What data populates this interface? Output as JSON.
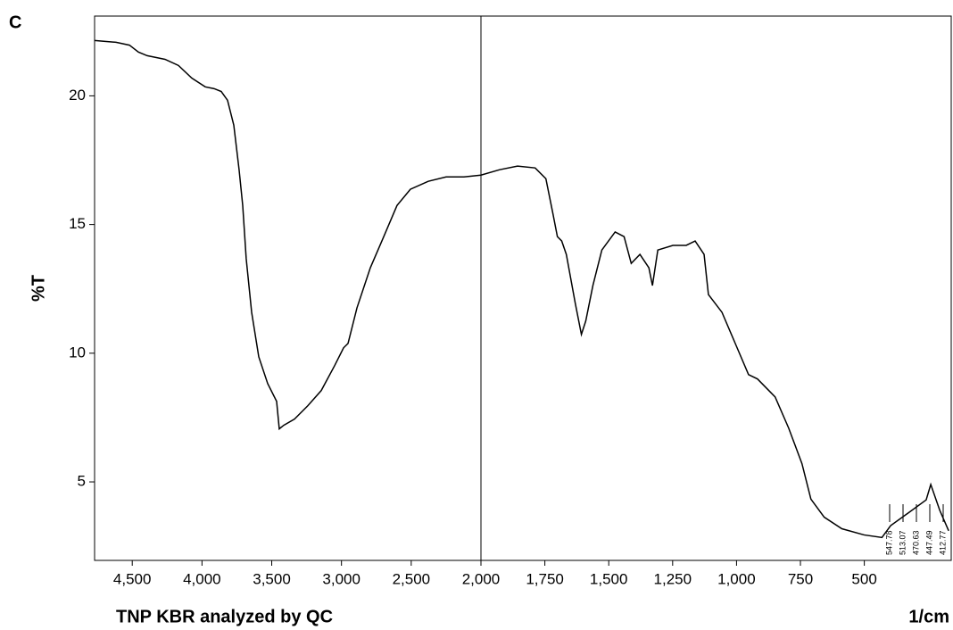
{
  "chart_data": {
    "type": "line",
    "panel": "C",
    "ylabel": "%T",
    "xlabel": "TNP KBR analyzed by QC",
    "xunit": "1/cm",
    "x": [
      4770,
      4616,
      4520,
      4456,
      4393,
      4265,
      4169,
      4073,
      3977,
      3913,
      3862,
      3817,
      3772,
      3734,
      3708,
      3683,
      3644,
      3593,
      3529,
      3465,
      3446,
      3414,
      3337,
      3241,
      3145,
      3049,
      2985,
      2953,
      2889,
      2793,
      2697,
      2602,
      2506,
      2378,
      2250,
      2122,
      2000,
      1927,
      1857,
      1788,
      1746,
      1718,
      1701,
      1684,
      1666,
      1631,
      1607,
      1590,
      1562,
      1527,
      1475,
      1440,
      1412,
      1378,
      1343,
      1329,
      1308,
      1249,
      1197,
      1162,
      1127,
      1110,
      1057,
      1005,
      953,
      918,
      849,
      796,
      744,
      709,
      657,
      588,
      501,
      431,
      397,
      327,
      258,
      240,
      205,
      170
    ],
    "series": [
      {
        "name": "%T",
        "color": "#000000",
        "values": [
          22.15,
          22.08,
          21.97,
          21.7,
          21.56,
          21.42,
          21.18,
          20.69,
          20.35,
          20.28,
          20.17,
          19.83,
          18.86,
          17.13,
          15.74,
          13.67,
          11.59,
          9.86,
          8.82,
          8.13,
          7.06,
          7.2,
          7.44,
          7.96,
          8.55,
          9.52,
          10.21,
          10.38,
          11.76,
          13.32,
          14.53,
          15.74,
          16.37,
          16.68,
          16.85,
          16.85,
          16.92,
          17.13,
          17.27,
          17.2,
          16.78,
          15.4,
          14.53,
          14.36,
          13.84,
          11.94,
          10.73,
          11.25,
          12.63,
          14.01,
          14.71,
          14.53,
          13.49,
          13.84,
          13.32,
          12.63,
          14.01,
          14.19,
          14.19,
          14.36,
          13.84,
          12.28,
          11.59,
          10.38,
          9.17,
          9.0,
          8.3,
          7.09,
          5.71,
          4.33,
          3.63,
          3.18,
          2.94,
          2.84,
          3.3,
          3.8,
          4.3,
          4.9,
          3.9,
          3.1
        ]
      }
    ],
    "xlim": [
      4770,
      160
    ],
    "x_split": 2000,
    "xticks": [
      {
        "value": 4500,
        "label": "4,500"
      },
      {
        "value": 4000,
        "label": "4,000"
      },
      {
        "value": 3500,
        "label": "3,500"
      },
      {
        "value": 3000,
        "label": "3,000"
      },
      {
        "value": 2500,
        "label": "2,500"
      },
      {
        "value": 2000,
        "label": "2,000"
      },
      {
        "value": 1750,
        "label": "1,750"
      },
      {
        "value": 1500,
        "label": "1,500"
      },
      {
        "value": 1250,
        "label": "1,250"
      },
      {
        "value": 1000,
        "label": "1,000"
      },
      750,
      500
    ],
    "ylim": [
      1.95,
      23.1
    ],
    "yticks": [
      5,
      10,
      15,
      20
    ],
    "peak_labels": [
      "547.78",
      "513.07",
      "470.63",
      "447.49",
      "412.77"
    ]
  }
}
